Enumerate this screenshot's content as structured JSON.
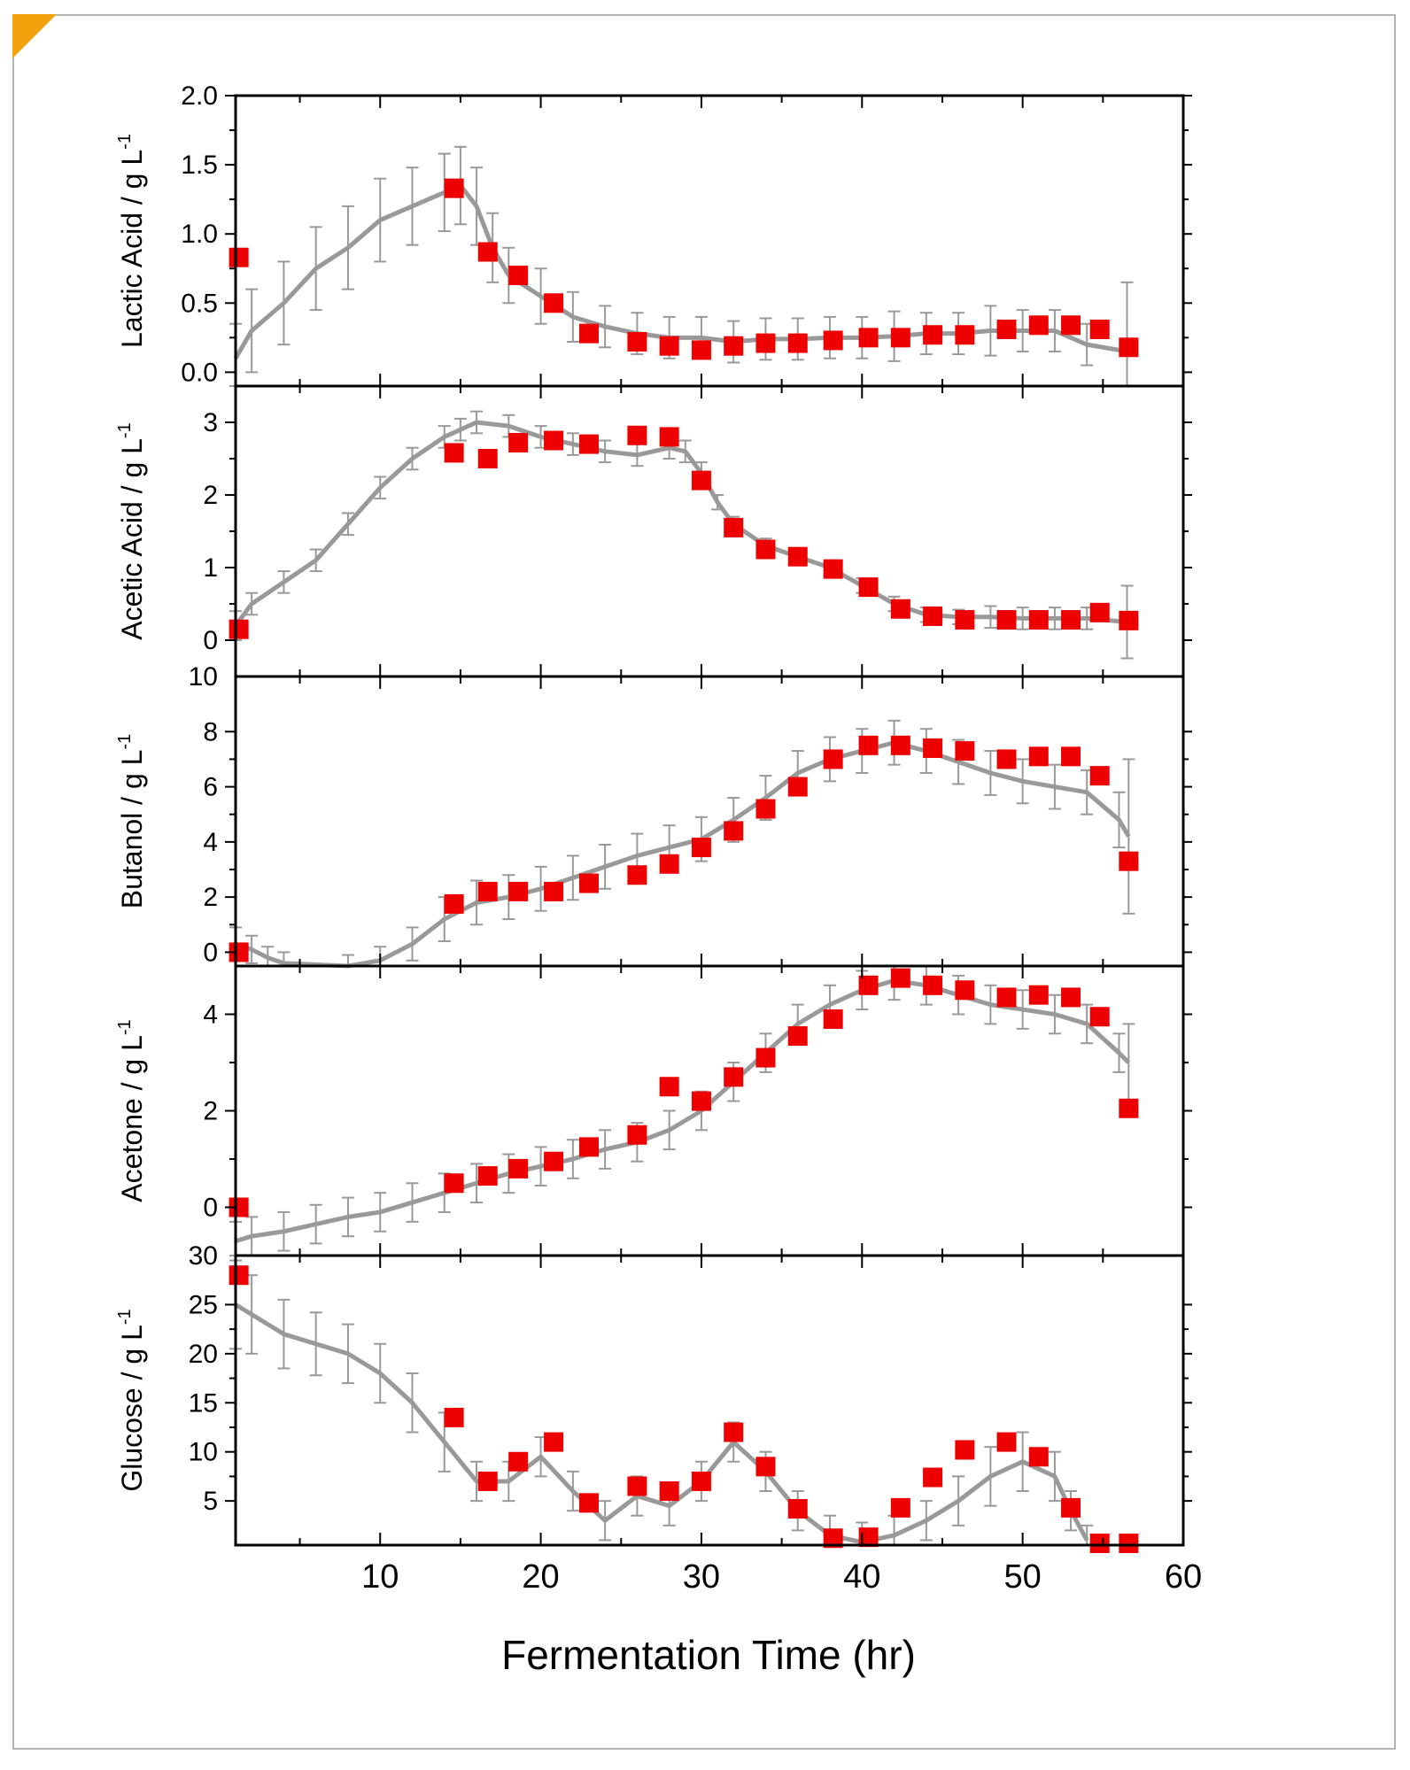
{
  "chart_data": {
    "type": "scatter",
    "xlabel": "Fermentation Time (hr)",
    "x_ticks": [
      10,
      20,
      30,
      40,
      50,
      60
    ],
    "xlim": [
      1,
      60
    ],
    "marker_color": "#ee0000",
    "curve_color": "#999999",
    "panels": [
      {
        "ylabel": "Lactic Acid / g L",
        "ylabel_sup": "-1",
        "ylim": [
          -0.1,
          2.0
        ],
        "y_ticks": [
          0.0,
          0.5,
          1.0,
          1.5,
          2.0
        ],
        "y_tick_labels": [
          "0.0",
          "0.5",
          "1.0",
          "1.5",
          "2.0"
        ],
        "top_label": "",
        "markers": {
          "x": [
            1.2,
            14.6,
            16.7,
            18.6,
            20.8,
            23.0,
            26.0,
            28.0,
            30.0,
            32.0,
            34.0,
            36.0,
            38.2,
            40.4,
            42.4,
            44.4,
            46.4,
            49.0,
            51.0,
            53.0,
            54.8,
            56.6
          ],
          "y": [
            0.83,
            1.33,
            0.87,
            0.7,
            0.5,
            0.28,
            0.22,
            0.19,
            0.16,
            0.19,
            0.21,
            0.21,
            0.23,
            0.25,
            0.25,
            0.27,
            0.27,
            0.31,
            0.34,
            0.34,
            0.31,
            0.18
          ]
        },
        "curve": {
          "x": [
            1,
            2,
            4,
            6,
            8,
            10,
            12,
            14,
            15,
            16,
            17,
            18,
            20,
            22,
            24,
            26,
            28,
            30,
            32,
            34,
            36,
            38,
            40,
            42,
            44,
            46,
            48,
            50,
            52,
            54,
            56.5
          ],
          "y": [
            0.1,
            0.3,
            0.5,
            0.75,
            0.9,
            1.1,
            1.2,
            1.3,
            1.35,
            1.2,
            0.9,
            0.7,
            0.55,
            0.4,
            0.33,
            0.28,
            0.25,
            0.25,
            0.22,
            0.24,
            0.24,
            0.25,
            0.25,
            0.26,
            0.28,
            0.28,
            0.3,
            0.3,
            0.3,
            0.2,
            0.15
          ],
          "err": [
            0.25,
            0.3,
            0.3,
            0.3,
            0.3,
            0.3,
            0.28,
            0.28,
            0.28,
            0.28,
            0.25,
            0.2,
            0.2,
            0.18,
            0.15,
            0.15,
            0.15,
            0.15,
            0.15,
            0.15,
            0.15,
            0.15,
            0.15,
            0.18,
            0.15,
            0.15,
            0.18,
            0.15,
            0.15,
            0.15,
            0.5
          ]
        }
      },
      {
        "ylabel": "Acetic Acid / g L",
        "ylabel_sup": "-1",
        "ylim": [
          -0.5,
          3.5
        ],
        "y_ticks": [
          0,
          1,
          2,
          3
        ],
        "y_tick_labels": [
          "0",
          "1",
          "2",
          "3"
        ],
        "top_label": "",
        "markers": {
          "x": [
            1.2,
            14.6,
            16.7,
            18.6,
            20.8,
            23.0,
            26.0,
            28.0,
            30.0,
            32.0,
            34.0,
            36.0,
            38.2,
            40.4,
            42.4,
            44.4,
            46.4,
            49.0,
            51.0,
            53.0,
            54.8,
            56.6
          ],
          "y": [
            0.15,
            2.58,
            2.5,
            2.72,
            2.75,
            2.7,
            2.82,
            2.8,
            2.2,
            1.55,
            1.25,
            1.15,
            0.98,
            0.73,
            0.43,
            0.33,
            0.28,
            0.28,
            0.28,
            0.28,
            0.38,
            0.27
          ]
        },
        "curve": {
          "x": [
            1,
            2,
            4,
            6,
            8,
            10,
            12,
            14,
            15,
            16,
            18,
            20,
            22,
            24,
            26,
            28,
            29,
            30,
            31,
            32,
            34,
            36,
            38,
            40,
            42,
            44,
            46,
            48,
            50,
            52,
            54,
            56.5
          ],
          "y": [
            0.2,
            0.5,
            0.8,
            1.1,
            1.6,
            2.1,
            2.5,
            2.8,
            2.9,
            3.0,
            2.95,
            2.8,
            2.7,
            2.6,
            2.55,
            2.65,
            2.6,
            2.3,
            1.9,
            1.6,
            1.3,
            1.15,
            1.0,
            0.75,
            0.5,
            0.35,
            0.32,
            0.32,
            0.3,
            0.3,
            0.3,
            0.25
          ],
          "err": [
            0.2,
            0.15,
            0.15,
            0.15,
            0.15,
            0.15,
            0.15,
            0.15,
            0.15,
            0.15,
            0.15,
            0.15,
            0.15,
            0.15,
            0.15,
            0.15,
            0.15,
            0.15,
            0.1,
            0.1,
            0.1,
            0.1,
            0.1,
            0.1,
            0.1,
            0.1,
            0.1,
            0.15,
            0.15,
            0.15,
            0.15,
            0.5
          ]
        }
      },
      {
        "ylabel": "Butanol / g L",
        "ylabel_sup": "-1",
        "ylim": [
          -0.5,
          10
        ],
        "y_ticks": [
          0,
          2,
          4,
          6,
          8
        ],
        "y_tick_labels": [
          "0",
          "2",
          "4",
          "6",
          "8"
        ],
        "top_label": "10",
        "markers": {
          "x": [
            1.2,
            14.6,
            16.7,
            18.6,
            20.8,
            23.0,
            26.0,
            28.0,
            30.0,
            32.0,
            34.0,
            36.0,
            38.2,
            40.4,
            42.4,
            44.4,
            46.4,
            49.0,
            51.0,
            53.0,
            54.8,
            56.6
          ],
          "y": [
            0.0,
            1.75,
            2.2,
            2.2,
            2.2,
            2.5,
            2.8,
            3.2,
            3.8,
            4.4,
            5.2,
            6.0,
            7.0,
            7.5,
            7.5,
            7.4,
            7.3,
            7.0,
            7.1,
            7.1,
            6.4,
            3.3
          ]
        },
        "curve": {
          "x": [
            1,
            2,
            3,
            4,
            8,
            10,
            12,
            14,
            16,
            18,
            20,
            22,
            24,
            26,
            28,
            30,
            32,
            34,
            36,
            38,
            40,
            42,
            44,
            46,
            48,
            50,
            52,
            54,
            56,
            56.6
          ],
          "y": [
            0.3,
            0.1,
            -0.2,
            -0.4,
            -0.5,
            -0.3,
            0.3,
            1.2,
            1.8,
            2.0,
            2.3,
            2.7,
            3.1,
            3.5,
            3.8,
            4.1,
            4.8,
            5.6,
            6.5,
            7.0,
            7.3,
            7.6,
            7.3,
            6.9,
            6.5,
            6.2,
            6.0,
            5.8,
            4.8,
            4.2
          ],
          "err": [
            0.6,
            0.5,
            0.4,
            0.4,
            0.4,
            0.5,
            0.6,
            0.8,
            0.8,
            0.8,
            0.8,
            0.8,
            0.8,
            0.8,
            0.8,
            0.8,
            0.8,
            0.8,
            0.8,
            0.8,
            0.8,
            0.8,
            0.8,
            0.8,
            0.8,
            0.8,
            0.8,
            0.8,
            1.0,
            2.8
          ]
        }
      },
      {
        "ylabel": "Acetone / g L",
        "ylabel_sup": "-1",
        "ylim": [
          -1.0,
          5.0
        ],
        "y_ticks": [
          0,
          2,
          4
        ],
        "y_tick_labels": [
          "0",
          "2",
          "4"
        ],
        "top_label": "",
        "markers": {
          "x": [
            1.2,
            14.6,
            16.7,
            18.6,
            20.8,
            23.0,
            26.0,
            28.0,
            30.0,
            32.0,
            34.0,
            36.0,
            38.2,
            40.4,
            42.4,
            44.4,
            46.4,
            49.0,
            51.0,
            53.0,
            54.8,
            56.6
          ],
          "y": [
            0.0,
            0.5,
            0.65,
            0.8,
            0.95,
            1.25,
            1.5,
            2.5,
            2.2,
            2.7,
            3.1,
            3.55,
            3.9,
            4.6,
            4.75,
            4.6,
            4.5,
            4.35,
            4.4,
            4.35,
            3.95,
            2.05
          ]
        },
        "curve": {
          "x": [
            1,
            2,
            4,
            6,
            8,
            10,
            12,
            14,
            16,
            18,
            20,
            22,
            24,
            26,
            28,
            30,
            32,
            34,
            36,
            38,
            40,
            42,
            44,
            46,
            48,
            50,
            52,
            54,
            56,
            56.6
          ],
          "y": [
            -0.7,
            -0.6,
            -0.5,
            -0.35,
            -0.2,
            -0.1,
            0.1,
            0.3,
            0.5,
            0.7,
            0.85,
            1.0,
            1.2,
            1.35,
            1.6,
            2.0,
            2.6,
            3.2,
            3.8,
            4.2,
            4.5,
            4.7,
            4.6,
            4.4,
            4.2,
            4.1,
            4.0,
            3.8,
            3.2,
            3.0
          ],
          "err": [
            0.4,
            0.4,
            0.4,
            0.4,
            0.4,
            0.4,
            0.4,
            0.4,
            0.4,
            0.4,
            0.4,
            0.4,
            0.4,
            0.4,
            0.4,
            0.4,
            0.4,
            0.4,
            0.4,
            0.4,
            0.4,
            0.4,
            0.4,
            0.4,
            0.4,
            0.4,
            0.4,
            0.4,
            0.4,
            0.8
          ]
        }
      },
      {
        "ylabel": "Glucose / g L",
        "ylabel_sup": "-1",
        "ylim": [
          0.5,
          30
        ],
        "y_ticks": [
          5,
          10,
          15,
          20,
          25
        ],
        "y_tick_labels": [
          "5",
          "10",
          "15",
          "20",
          "25"
        ],
        "top_label": "30",
        "markers": {
          "x": [
            1.2,
            14.6,
            16.7,
            18.6,
            20.8,
            23.0,
            26.0,
            28.0,
            30.0,
            32.0,
            34.0,
            36.0,
            38.2,
            40.4,
            42.4,
            44.4,
            46.4,
            49.0,
            51.0,
            53.0,
            54.8,
            56.6
          ],
          "y": [
            28.0,
            13.5,
            7.0,
            9.0,
            11.0,
            4.8,
            6.5,
            6.0,
            7.0,
            12.0,
            8.5,
            4.2,
            1.2,
            1.3,
            4.3,
            7.4,
            10.2,
            11.0,
            9.5,
            4.3,
            0.3,
            0.0
          ]
        },
        "curve": {
          "x": [
            1,
            2,
            4,
            6,
            8,
            10,
            12,
            14,
            16,
            18,
            20,
            22,
            24,
            26,
            28,
            30,
            32,
            34,
            36,
            38,
            40,
            42,
            44,
            46,
            48,
            50,
            52,
            53,
            54
          ],
          "y": [
            25.0,
            24.0,
            22.0,
            21.0,
            20.0,
            18.0,
            15.0,
            11.0,
            7.0,
            7.0,
            9.5,
            6.0,
            3.0,
            5.5,
            4.5,
            7.0,
            11.0,
            8.0,
            4.0,
            1.5,
            0.8,
            1.5,
            3.0,
            5.0,
            7.5,
            9.0,
            7.5,
            4.0,
            1.0
          ],
          "err": [
            4.5,
            4.0,
            3.5,
            3.2,
            3.0,
            3.0,
            3.0,
            3.0,
            2.0,
            2.0,
            2.0,
            2.0,
            2.0,
            2.0,
            2.0,
            2.0,
            2.0,
            2.0,
            2.0,
            2.0,
            2.0,
            2.0,
            2.0,
            2.5,
            3.0,
            3.0,
            2.5,
            2.0,
            1.5
          ]
        }
      }
    ]
  }
}
